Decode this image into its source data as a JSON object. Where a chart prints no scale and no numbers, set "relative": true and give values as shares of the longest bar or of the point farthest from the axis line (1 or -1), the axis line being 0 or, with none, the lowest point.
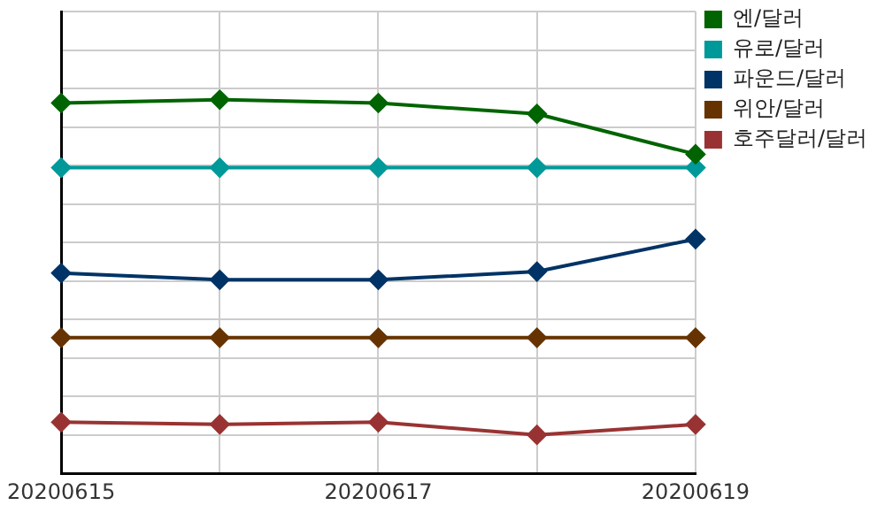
{
  "chart_data": {
    "type": "line",
    "relative": true,
    "categories": [
      "20200615",
      null,
      "20200617",
      null,
      "20200619"
    ],
    "series": [
      {
        "name": "엔/달러",
        "color": "#006400",
        "values": [
          0.991,
          1,
          0.991,
          0.962,
          0.854
        ]
      },
      {
        "name": "유로/달러",
        "color": "#009999",
        "values": [
          0.818,
          0.818,
          0.818,
          0.818,
          0.818
        ]
      },
      {
        "name": "파운드/달러",
        "color": "#003366",
        "values": [
          0.536,
          0.518,
          0.518,
          0.54,
          0.627
        ]
      },
      {
        "name": "위안/달러",
        "color": "#663300",
        "values": [
          0.363,
          0.363,
          0.363,
          0.363,
          0.363
        ]
      },
      {
        "name": "호주달러/달러",
        "color": "#993333",
        "values": [
          0.137,
          0.131,
          0.137,
          0.103,
          0.131
        ]
      }
    ],
    "grid": true,
    "legend": "top right",
    "marker": "diamond",
    "line_style": "solid"
  }
}
